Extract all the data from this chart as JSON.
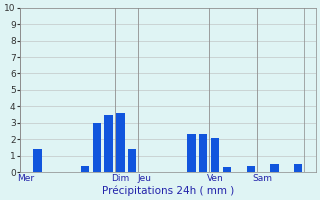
{
  "bars": [
    {
      "x": 1,
      "height": 1.4
    },
    {
      "x": 5,
      "height": 0.4
    },
    {
      "x": 6,
      "height": 3.0
    },
    {
      "x": 7,
      "height": 3.5
    },
    {
      "x": 8,
      "height": 3.6
    },
    {
      "x": 9,
      "height": 1.4
    },
    {
      "x": 14,
      "height": 2.3
    },
    {
      "x": 15,
      "height": 2.3
    },
    {
      "x": 16,
      "height": 2.1
    },
    {
      "x": 17,
      "height": 0.3
    },
    {
      "x": 19,
      "height": 0.4
    },
    {
      "x": 21,
      "height": 0.5
    },
    {
      "x": 23,
      "height": 0.5
    }
  ],
  "xlim": [
    -0.5,
    24.5
  ],
  "ylim": [
    0,
    10
  ],
  "yticks": [
    0,
    1,
    2,
    3,
    4,
    5,
    6,
    7,
    8,
    9,
    10
  ],
  "xtick_positions": [
    0,
    8,
    10,
    16,
    20
  ],
  "xtick_labels": [
    "Mer",
    "Dim",
    "Jeu",
    "Ven",
    "Sam"
  ],
  "xlabel": "Précipitations 24h ( mm )",
  "bar_color": "#1155dd",
  "bg_color": "#dff4f4",
  "grid_color": "#bbbbbb",
  "label_color": "#2222aa",
  "vline_positions": [
    0,
    8,
    10,
    16,
    20,
    24
  ],
  "bar_width": 0.7
}
